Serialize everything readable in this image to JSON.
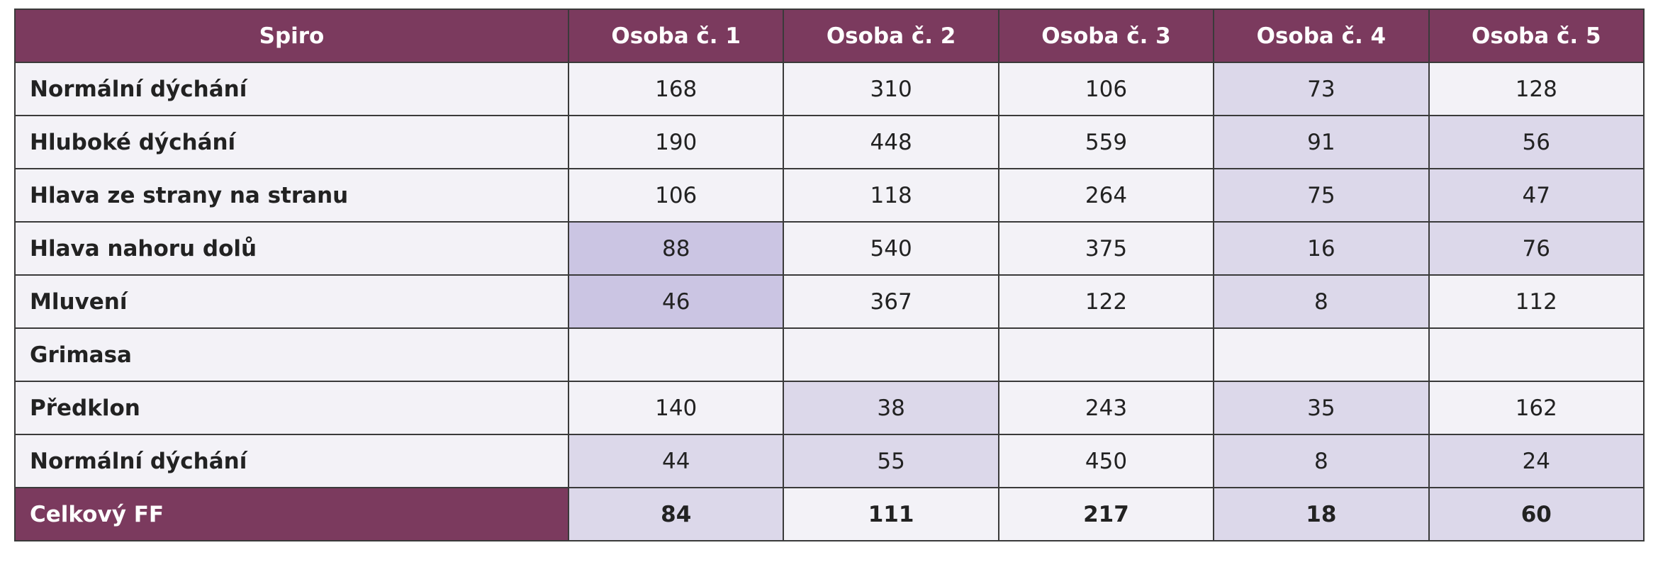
{
  "table": {
    "header": [
      "Spiro",
      "Osoba č. 1",
      "Osoba č. 2",
      "Osoba č. 3",
      "Osoba č. 4",
      "Osoba č. 5"
    ],
    "rows": [
      [
        "Normální dýchání",
        168,
        310,
        106,
        73,
        128
      ],
      [
        "Hluboké dýchání",
        190,
        448,
        559,
        91,
        56
      ],
      [
        "Hlava ze strany na stranu",
        106,
        118,
        264,
        75,
        47
      ],
      [
        "Hlava nahoru dolů",
        88,
        540,
        375,
        16,
        76
      ],
      [
        "Mluvení",
        46,
        367,
        122,
        8,
        112
      ],
      [
        "Grimasa",
        null,
        null,
        null,
        null,
        null
      ],
      [
        "Předklon",
        140,
        38,
        243,
        35,
        162
      ],
      [
        "Normální dýchání",
        44,
        55,
        450,
        8,
        24
      ]
    ],
    "footer": [
      "Celkový FF",
      84,
      111,
      217,
      18,
      60
    ]
  }
}
